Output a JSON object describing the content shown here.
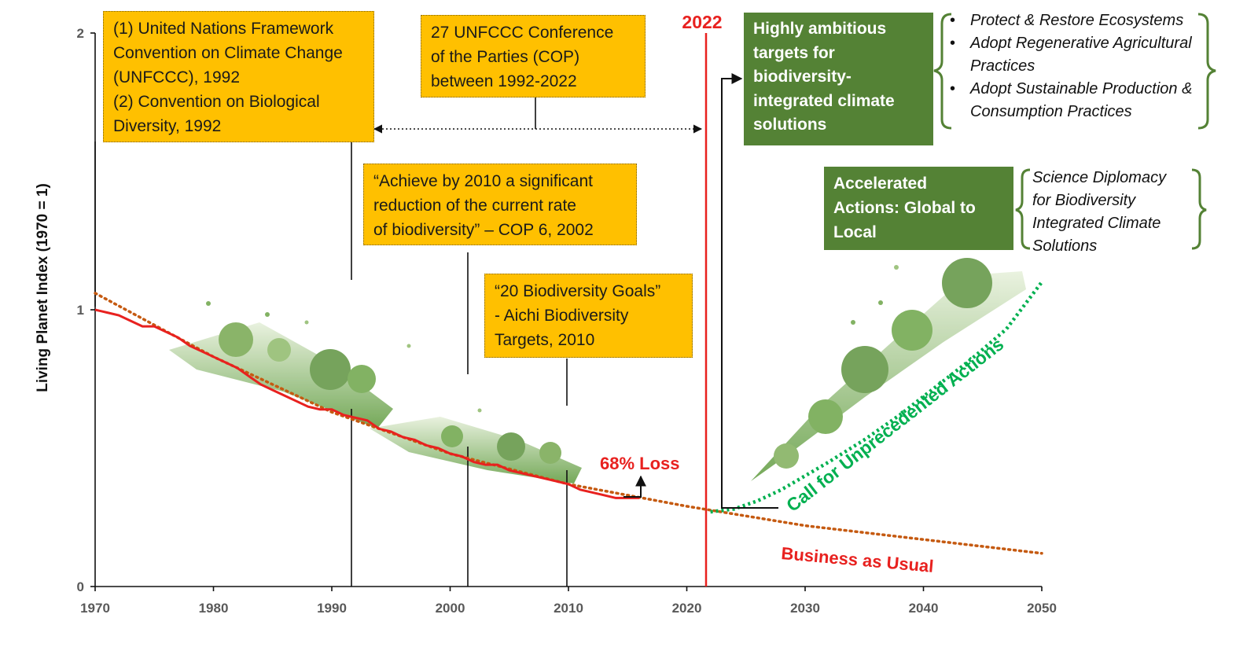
{
  "chart_data": {
    "type": "line",
    "ylabel": "Living Planet Index (1970 = 1)",
    "xlabel": "",
    "xlim": [
      1970,
      2050
    ],
    "ylim": [
      0,
      2
    ],
    "x_ticks": [
      1970,
      1980,
      1990,
      2000,
      2010,
      2020,
      2030,
      2040,
      2050
    ],
    "y_ticks": [
      0,
      1,
      2
    ],
    "grid": false,
    "colors": {
      "observed": "#E8211F",
      "business": "#C55A11",
      "unprecedented": "#00B050",
      "marker2022": "#E8211F"
    },
    "series": [
      {
        "key": "observed",
        "x": [
          1970,
          1971,
          1972,
          1973,
          1974,
          1975,
          1976,
          1977,
          1978,
          1979,
          1980,
          1981,
          1982,
          1983,
          1984,
          1985,
          1986,
          1987,
          1988,
          1989,
          1990,
          1991,
          1992,
          1993,
          1994,
          1995,
          1996,
          1997,
          1998,
          1999,
          2000,
          2001,
          2002,
          2003,
          2004,
          2005,
          2006,
          2007,
          2008,
          2009,
          2010,
          2011,
          2012,
          2013,
          2014,
          2015,
          2016
        ],
        "values": [
          1.0,
          0.99,
          0.98,
          0.96,
          0.94,
          0.94,
          0.92,
          0.9,
          0.87,
          0.85,
          0.83,
          0.81,
          0.79,
          0.76,
          0.73,
          0.71,
          0.69,
          0.67,
          0.65,
          0.64,
          0.64,
          0.62,
          0.61,
          0.6,
          0.57,
          0.56,
          0.54,
          0.53,
          0.51,
          0.5,
          0.48,
          0.47,
          0.45,
          0.44,
          0.44,
          0.42,
          0.41,
          0.4,
          0.39,
          0.38,
          0.37,
          0.35,
          0.34,
          0.33,
          0.32,
          0.32,
          0.32
        ]
      },
      {
        "key": "business",
        "x": [
          1970,
          1980,
          1990,
          2000,
          2010,
          2020,
          2030,
          2040,
          2050
        ],
        "values": [
          1.06,
          0.83,
          0.63,
          0.48,
          0.37,
          0.29,
          0.22,
          0.17,
          0.12
        ]
      },
      {
        "key": "unprecedented",
        "x": [
          2022,
          2024,
          2026,
          2028,
          2030,
          2032,
          2035,
          2038,
          2041,
          2044,
          2047,
          2050
        ],
        "values": [
          0.27,
          0.28,
          0.31,
          0.35,
          0.4,
          0.45,
          0.53,
          0.62,
          0.72,
          0.82,
          0.93,
          1.1
        ]
      }
    ],
    "marker_year": 2022,
    "marker_label": "2022",
    "annotations": {
      "loss": "68% Loss",
      "business": "Business as Usual",
      "unprecedented": "Call for Unprecedented Actions"
    },
    "callouts": [
      {
        "key": "unfccc",
        "lines": [
          "(1) United Nations Framework",
          "Convention on Climate Change",
          "(UNFCCC), 1992",
          "(2) Convention on Biological",
          "Diversity, 1992"
        ]
      },
      {
        "key": "cop",
        "lines": [
          "27 UNFCCC Conference",
          "of the Parties (COP)",
          "between 1992-2022"
        ]
      },
      {
        "key": "cop6",
        "lines": [
          "“Achieve by 2010 a significant",
          "reduction of the current rate",
          "of biodiversity” – COP 6, 2002"
        ]
      },
      {
        "key": "aichi",
        "lines": [
          "“20 Biodiversity Goals”",
          "- Aichi Biodiversity",
          "Targets, 2010"
        ]
      },
      {
        "key": "targets",
        "lines": [
          "Highly ambitious",
          "targets for",
          "biodiversity-",
          "integrated climate",
          "solutions"
        ]
      },
      {
        "key": "accelerated",
        "lines": [
          "Accelerated",
          "Actions: Global to",
          "Local"
        ]
      }
    ],
    "practices": [
      "Protect & Restore Ecosystems",
      "Adopt Regenerative Agricultural Practices",
      "Adopt Sustainable Production & Consumption Practices"
    ],
    "diplomacy": [
      "Science Diplomacy",
      "for Biodiversity",
      "Integrated Climate",
      "Solutions"
    ]
  }
}
